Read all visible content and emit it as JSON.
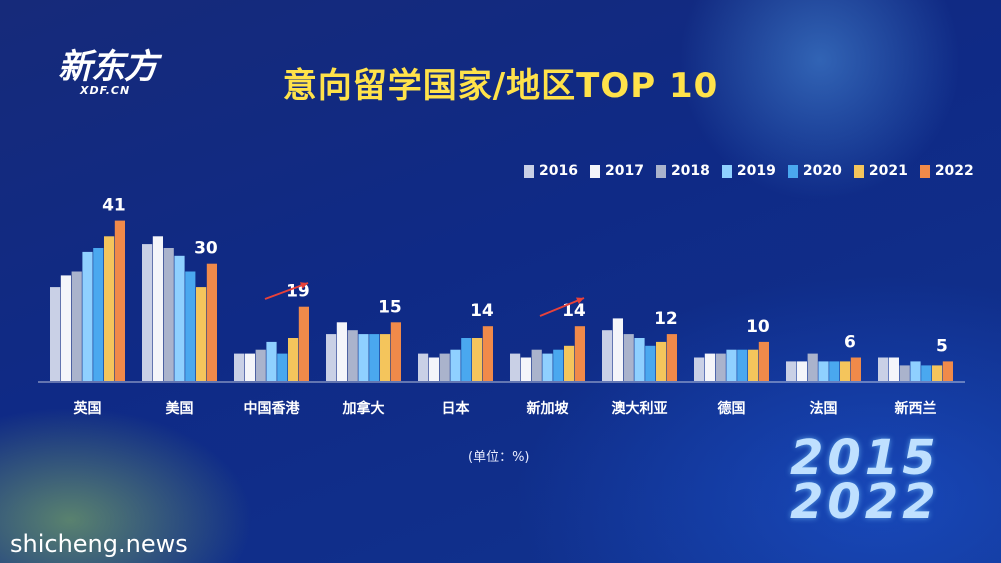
{
  "logo": {
    "main": "新东方",
    "sub": "XDF.CN"
  },
  "chart_data": {
    "type": "bar",
    "title": "意向留学国家/地区TOP 10",
    "categories": [
      "英国",
      "美国",
      "中国香港",
      "加拿大",
      "日本",
      "新加坡",
      "澳大利亚",
      "德国",
      "法国",
      "新西兰"
    ],
    "series": [
      {
        "name": "2016",
        "values": [
          24,
          35,
          7,
          12,
          7,
          7,
          13,
          6,
          5,
          6
        ]
      },
      {
        "name": "2017",
        "values": [
          27,
          37,
          7,
          15,
          6,
          6,
          16,
          7,
          5,
          6
        ]
      },
      {
        "name": "2018",
        "values": [
          28,
          34,
          8,
          13,
          7,
          8,
          12,
          7,
          7,
          4
        ]
      },
      {
        "name": "2019",
        "values": [
          33,
          32,
          10,
          12,
          8,
          7,
          11,
          8,
          5,
          5
        ]
      },
      {
        "name": "2020",
        "values": [
          34,
          28,
          7,
          12,
          11,
          8,
          9,
          8,
          5,
          4
        ]
      },
      {
        "name": "2021",
        "values": [
          37,
          24,
          11,
          12,
          11,
          9,
          10,
          8,
          5,
          4
        ]
      },
      {
        "name": "2022",
        "values": [
          41,
          30,
          19,
          15,
          14,
          14,
          12,
          10,
          6,
          5
        ]
      }
    ],
    "data_labels": [
      "41",
      "30",
      "19",
      "15",
      "14",
      "14",
      "12",
      "10",
      "6",
      "5"
    ],
    "legend_position": "top-right",
    "grid": false,
    "ylim": [
      0,
      45
    ]
  },
  "colors": {
    "2016": "#c9d0e6",
    "2017": "#f4f5fa",
    "2018": "#aab3cc",
    "2019": "#8fd0ff",
    "2020": "#4aa8ef",
    "2021": "#f4c55c",
    "2022": "#f08a4a",
    "title": "#ffe24a",
    "arrow": "#e8423a"
  },
  "unit_label": "(单位：%)",
  "year_badge": {
    "top": "2015",
    "bottom": "2022"
  },
  "watermark": "shicheng.news"
}
